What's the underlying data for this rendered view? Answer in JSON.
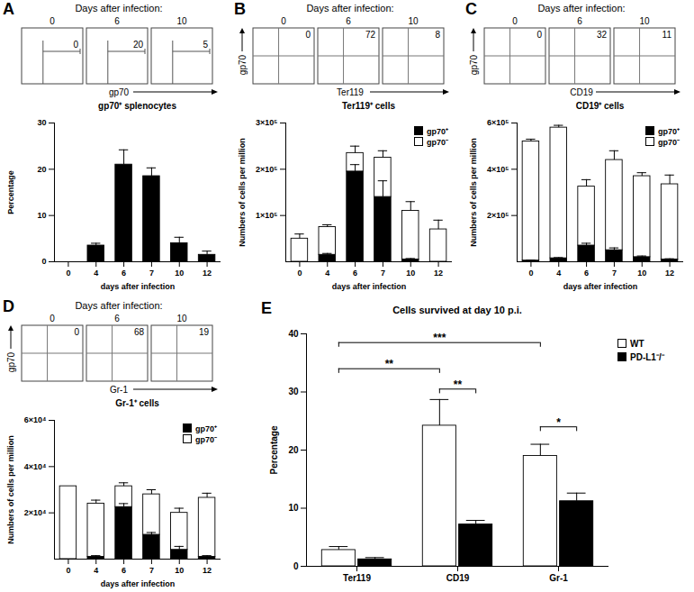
{
  "chart_data": [
    {
      "type": "flow",
      "panel": "A",
      "title": "Days after infection:",
      "categories": [
        "0",
        "6",
        "10"
      ],
      "values": [
        0,
        20,
        5
      ],
      "xlabel": "gp70"
    },
    {
      "type": "bar",
      "title": "gp70⁺ splenocytes",
      "xlabel": "days after infection",
      "ylabel": "Percentage",
      "categories": [
        "0",
        "4",
        "6",
        "7",
        "10",
        "12"
      ],
      "values": [
        0,
        3.5,
        21,
        18.5,
        4,
        1.5
      ],
      "errors": [
        0,
        0.5,
        3.2,
        1.8,
        1.3,
        0.8
      ],
      "color": "#000000",
      "ylim": [
        0,
        30
      ],
      "yticks": [
        0,
        10,
        20,
        30
      ]
    },
    {
      "type": "flow",
      "panel": "B",
      "title": "Days after infection:",
      "categories": [
        "0",
        "6",
        "10"
      ],
      "values": [
        0,
        72,
        8
      ],
      "xlabel": "Ter119",
      "ylabel": "gp70"
    },
    {
      "type": "bar",
      "title": "Ter119⁺ cells",
      "xlabel": "days after infection",
      "ylabel": "Numbers of cells per million",
      "categories": [
        "0",
        "4",
        "6",
        "7",
        "10",
        "12"
      ],
      "stacked": true,
      "legend": "top-right",
      "series": [
        {
          "name": "gp70⁺",
          "color": "#000000",
          "values": [
            0,
            15000,
            195000,
            140000,
            5000,
            0
          ],
          "errors": [
            0,
            3000,
            15000,
            35000,
            2000,
            0
          ]
        },
        {
          "name": "gp70⁻",
          "color": "#ffffff",
          "values": [
            50000,
            60000,
            40000,
            85000,
            105000,
            70000
          ],
          "errors": [
            10000,
            5000,
            15000,
            15000,
            20000,
            20000
          ]
        }
      ],
      "ylim": [
        0,
        300000
      ],
      "yticks": [
        {
          "value": 100000,
          "label": "1×10⁵"
        },
        {
          "value": 200000,
          "label": "2×10⁵"
        },
        {
          "value": 300000,
          "label": "3×10⁵"
        }
      ]
    },
    {
      "type": "flow",
      "panel": "C",
      "title": "Days after infection:",
      "categories": [
        "0",
        "6",
        "10"
      ],
      "values": [
        0,
        32,
        11
      ],
      "xlabel": "CD19",
      "ylabel": "gp70"
    },
    {
      "type": "bar",
      "title": "CD19⁺ cells",
      "xlabel": "days after infection",
      "ylabel": "Numbers of cells per million",
      "categories": [
        "0",
        "4",
        "6",
        "7",
        "10",
        "12"
      ],
      "stacked": true,
      "legend": "top-right",
      "series": [
        {
          "name": "gp70⁺",
          "color": "#000000",
          "values": [
            5000,
            15000,
            70000,
            50000,
            20000,
            10000
          ],
          "errors": [
            2000,
            3000,
            10000,
            10000,
            5000,
            3000
          ]
        },
        {
          "name": "gp70⁻",
          "color": "#ffffff",
          "values": [
            515000,
            565000,
            255000,
            390000,
            350000,
            325000
          ],
          "errors": [
            10000,
            10000,
            30000,
            40000,
            15000,
            40000
          ]
        }
      ],
      "ylim": [
        0,
        600000
      ],
      "yticks": [
        {
          "value": 200000,
          "label": "2×10⁵"
        },
        {
          "value": 400000,
          "label": "4×10⁵"
        },
        {
          "value": 600000,
          "label": "6×10⁵"
        }
      ]
    },
    {
      "type": "flow",
      "panel": "D",
      "title": "Days after infection:",
      "categories": [
        "0",
        "6",
        "10"
      ],
      "values": [
        0,
        68,
        19
      ],
      "xlabel": "Gr-1",
      "ylabel": "gp70"
    },
    {
      "type": "bar",
      "title": "Gr-1⁺ cells",
      "xlabel": "days after infection",
      "ylabel": "Numbers of cells per million",
      "categories": [
        "0",
        "4",
        "6",
        "7",
        "10",
        "12"
      ],
      "stacked": true,
      "legend": "top-right",
      "series": [
        {
          "name": "gp70⁺",
          "color": "#000000",
          "values": [
            0,
            1000,
            22500,
            10500,
            4000,
            1000
          ],
          "errors": [
            0,
            500,
            1500,
            1000,
            1500,
            500
          ]
        },
        {
          "name": "gp70⁻",
          "color": "#ffffff",
          "values": [
            31500,
            23000,
            9000,
            17500,
            16000,
            25500
          ],
          "errors": [
            0,
            1500,
            1500,
            2000,
            2000,
            2000
          ]
        }
      ],
      "ylim": [
        0,
        60000
      ],
      "yticks": [
        {
          "value": 20000,
          "label": "2×10⁴"
        },
        {
          "value": 40000,
          "label": "4×10⁴"
        },
        {
          "value": 60000,
          "label": "6×10⁴"
        }
      ]
    },
    {
      "type": "bar",
      "panel": "E",
      "title": "Cells survived at day 10 p.i.",
      "ylabel": "Percentage",
      "categories": [
        "Ter119",
        "CD19",
        "Gr-1"
      ],
      "legend": "top-right",
      "series": [
        {
          "name": "WT",
          "color": "#ffffff",
          "values": [
            2.8,
            24.2,
            19
          ],
          "errors": [
            0.6,
            4.5,
            2
          ]
        },
        {
          "name": "PD-L1⁻/⁻",
          "color": "#000000",
          "values": [
            1.2,
            7.2,
            11.2
          ],
          "errors": [
            0.3,
            0.7,
            1.4
          ]
        }
      ],
      "ylim": [
        0,
        40
      ],
      "yticks": [
        0,
        10,
        20,
        30,
        40
      ],
      "annotations": [
        {
          "text": "**",
          "from": {
            "category": "Ter119",
            "series": "WT"
          },
          "to": {
            "category": "CD19",
            "series": "WT"
          },
          "y": 34
        },
        {
          "text": "***",
          "from": {
            "category": "Ter119",
            "series": "WT"
          },
          "to": {
            "category": "Gr-1",
            "series": "WT"
          },
          "y": 38.5
        },
        {
          "text": "**",
          "from": {
            "category": "CD19",
            "series": "WT"
          },
          "to": {
            "category": "CD19",
            "series": "PD-L1⁻/⁻"
          },
          "y": 30.5
        },
        {
          "text": "*",
          "from": {
            "category": "Gr-1",
            "series": "WT"
          },
          "to": {
            "category": "Gr-1",
            "series": "PD-L1⁻/⁻"
          },
          "y": 24
        }
      ]
    }
  ]
}
